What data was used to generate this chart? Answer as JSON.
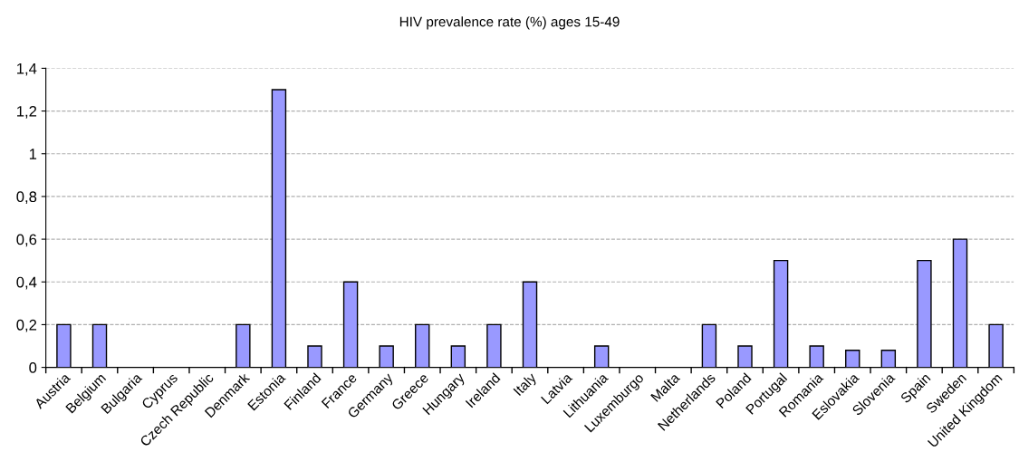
{
  "chart_data": {
    "type": "bar",
    "title": "HIV prevalence rate (%) ages 15-49",
    "categories": [
      "Austria",
      "Belgium",
      "Bulgaria",
      "Cyprus",
      "Czech Republic",
      "Denmark",
      "Estonia",
      "Finland",
      "France",
      "Germany",
      "Greece",
      "Hungary",
      "Ireland",
      "Italy",
      "Latvia",
      "Lithuania",
      "Luxemburgo",
      "Malta",
      "Netherlands",
      "Poland",
      "Portugal",
      "Romania",
      "Eslovakia",
      "Slovenia",
      "Spain",
      "Sweden",
      "United Kingdom"
    ],
    "values": [
      0.2,
      0.2,
      null,
      null,
      null,
      0.2,
      1.3,
      0.1,
      0.4,
      0.1,
      0.2,
      0.1,
      0.2,
      0.4,
      null,
      0.1,
      null,
      null,
      0.2,
      0.1,
      0.5,
      0.1,
      0.08,
      0.08,
      0.5,
      0.6,
      0.2
    ],
    "color": "#9999ff",
    "ylim": [
      0,
      1.4
    ],
    "yticks": [
      0,
      {
        "value": 0.2,
        "label": "0,2"
      },
      {
        "value": 0.4,
        "label": "0,4"
      },
      {
        "value": 0.6,
        "label": "0,6"
      },
      {
        "value": 0.8,
        "label": "0,8"
      },
      1,
      {
        "value": 1.2,
        "label": "1,2"
      },
      {
        "value": 1.4,
        "label": "1,4"
      }
    ],
    "grid": "y"
  }
}
